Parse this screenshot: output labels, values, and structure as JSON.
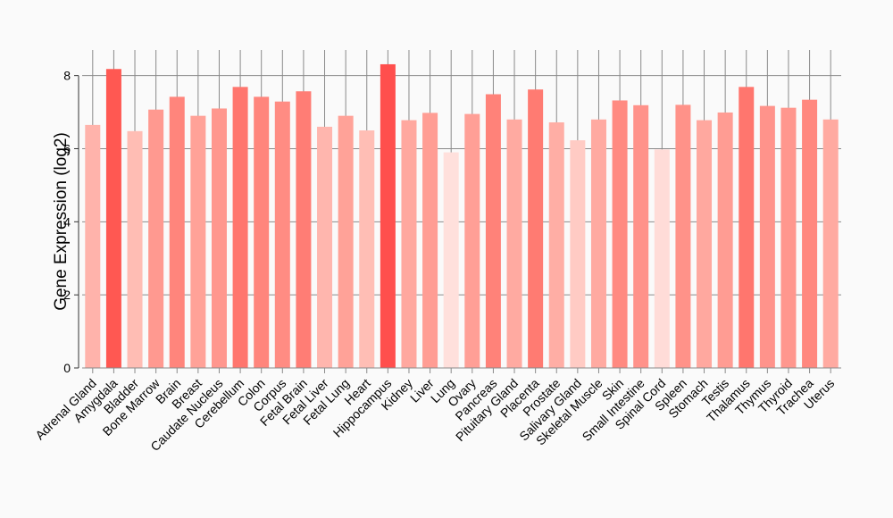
{
  "chart_data": {
    "type": "bar",
    "title": "",
    "xlabel": "",
    "ylabel": "Gene Expression (log2)",
    "ylim": [
      0,
      8.7
    ],
    "yticks": [
      0,
      2,
      4,
      6,
      8
    ],
    "grid": true,
    "categories": [
      "Adrenal Gland",
      "Amygdala",
      "Bladder",
      "Bone Marrow",
      "Brain",
      "Breast",
      "Caudate Nucleus",
      "Cerebellum",
      "Colon",
      "Corpus",
      "Fetal Brain",
      "Fetal Liver",
      "Fetal Lung",
      "Heart",
      "Hippocampus",
      "Kidney",
      "Liver",
      "Lung",
      "Ovary",
      "Pancreas",
      "Pituitary Gland",
      "Placenta",
      "Prostate",
      "Salivary Gland",
      "Skeletal Muscle",
      "Skin",
      "Small Intestine",
      "Spinal Cord",
      "Spleen",
      "Stomach",
      "Testis",
      "Thalamus",
      "Thymus",
      "Thyroid",
      "Trachea",
      "Uterus"
    ],
    "values": [
      6.65,
      8.18,
      6.48,
      7.07,
      7.42,
      6.9,
      7.1,
      7.69,
      7.42,
      7.29,
      7.57,
      6.6,
      6.9,
      6.5,
      8.31,
      6.78,
      6.98,
      5.9,
      6.95,
      7.49,
      6.8,
      7.62,
      6.72,
      6.23,
      6.8,
      7.32,
      7.19,
      5.98,
      7.2,
      6.78,
      6.99,
      7.69,
      7.17,
      7.12,
      7.34,
      6.8
    ],
    "colors": [
      "#ffb3ab",
      "#ff5852",
      "#ffbdb4",
      "#ff9990",
      "#ff857c",
      "#ffa298",
      "#ff978e",
      "#ff766e",
      "#ff857c",
      "#ff8c83",
      "#ff7d75",
      "#ffb6ae",
      "#ffa298",
      "#ffbeb5",
      "#ff4f4d",
      "#ffa89f",
      "#ff9d94",
      "#ffe0dc",
      "#ff9f96",
      "#ff8279",
      "#ffaaa1",
      "#ff7b72",
      "#ffaea5",
      "#ffcbc4",
      "#ffaaa1",
      "#ff8a81",
      "#ff928a",
      "#ffdcd8",
      "#ff9289",
      "#ffa89f",
      "#ff9c93",
      "#ff766e",
      "#ff938b",
      "#ff978e",
      "#ff887f",
      "#ffaaa1"
    ]
  }
}
